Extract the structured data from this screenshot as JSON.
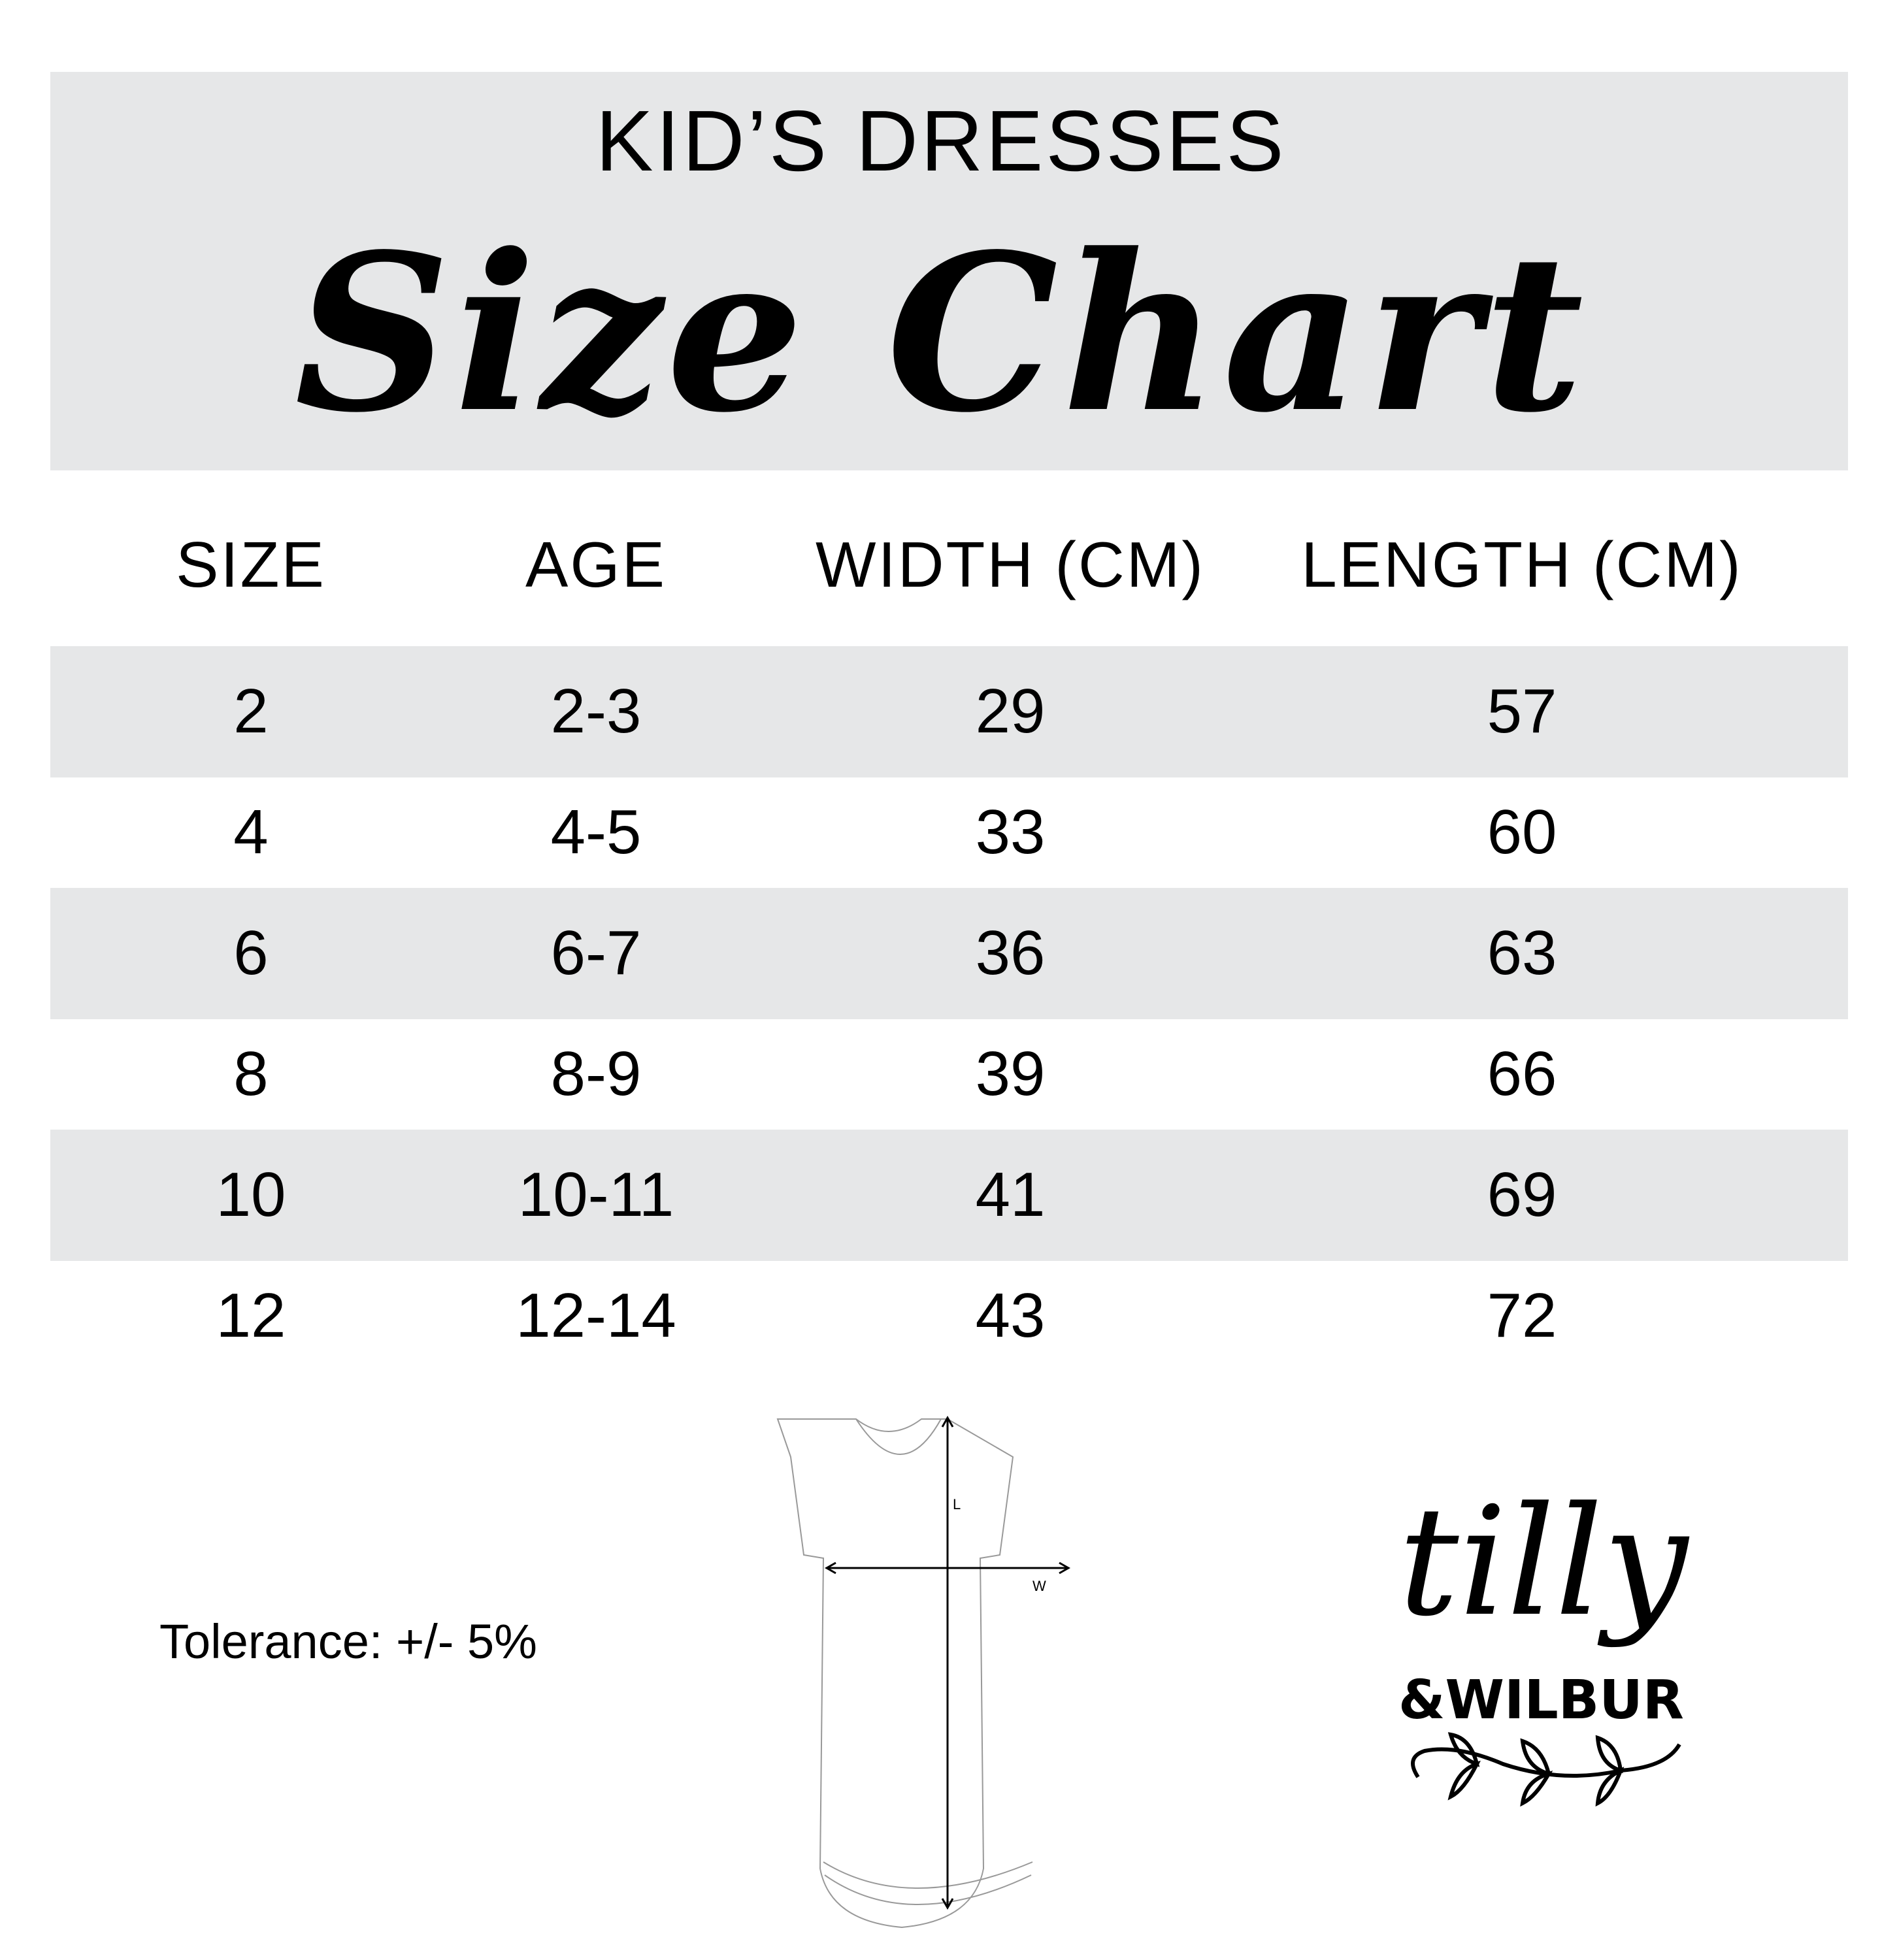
{
  "header": {
    "subtitle": "KID’S DRESSES",
    "title": "Size Chart",
    "background": "#e6e7e8"
  },
  "table": {
    "columns": [
      "SIZE",
      "AGE",
      "WIDTH (CM)",
      "LENGTH (CM)"
    ],
    "rows": [
      [
        "2",
        "2-3",
        "29",
        "57"
      ],
      [
        "4",
        "4-5",
        "33",
        "60"
      ],
      [
        "6",
        "6-7",
        "36",
        "63"
      ],
      [
        "8",
        "8-9",
        "39",
        "66"
      ],
      [
        "10",
        "10-11",
        "41",
        "69"
      ],
      [
        "12",
        "12-14",
        "43",
        "72"
      ]
    ],
    "stripe_color": "#e6e7e8"
  },
  "note": "Tolerance: +/- 5%",
  "diagram": {
    "length_label": "L",
    "width_label": "W"
  },
  "logo": {
    "line1": "tilly",
    "line2": "&WILBUR"
  }
}
